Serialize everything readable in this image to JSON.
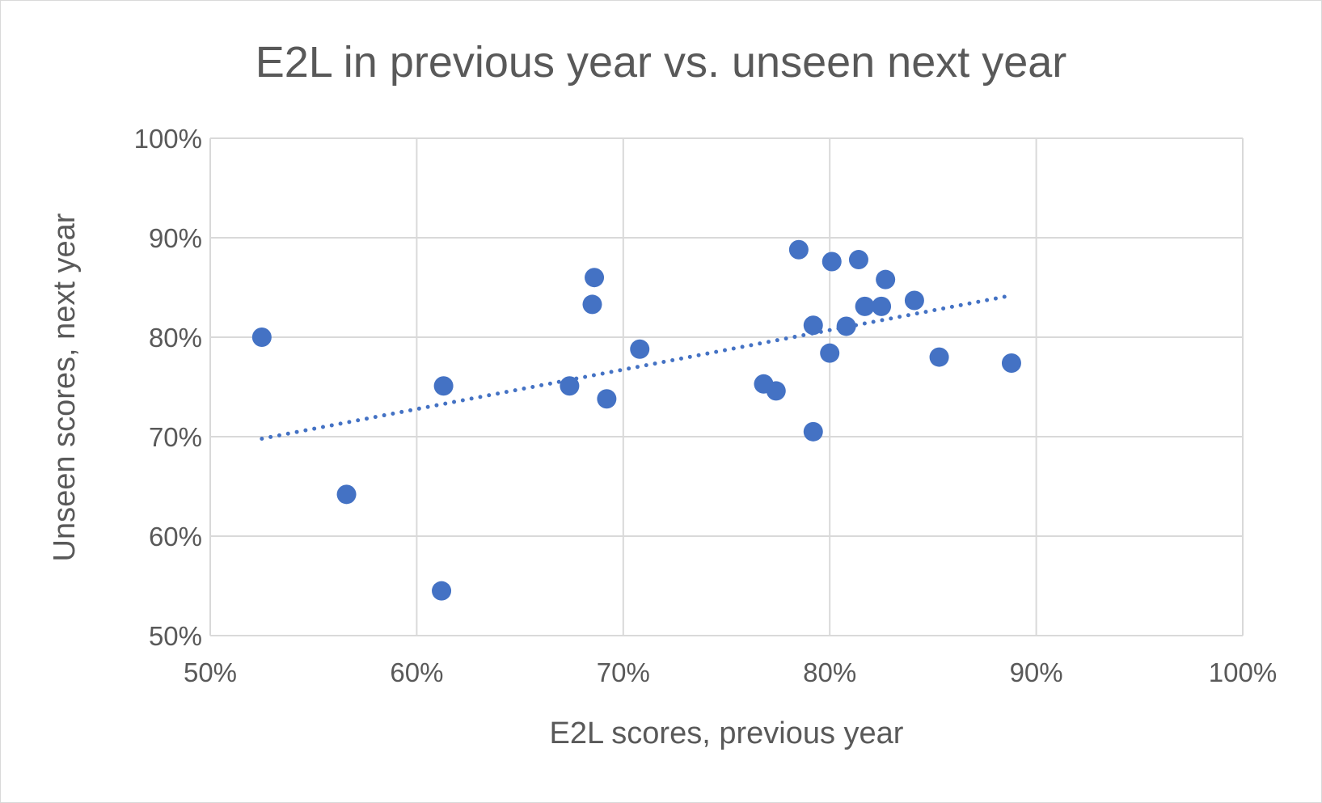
{
  "chart_data": {
    "type": "scatter",
    "title": "E2L in previous year vs. unseen next year",
    "xlabel": "E2L scores, previous year",
    "ylabel": "Unseen scores, next year",
    "xlim": [
      0.5,
      1.0
    ],
    "ylim": [
      0.5,
      1.0
    ],
    "x_ticks": [
      "50%",
      "60%",
      "70%",
      "80%",
      "90%",
      "100%"
    ],
    "y_ticks": [
      "50%",
      "60%",
      "70%",
      "80%",
      "90%",
      "100%"
    ],
    "grid": true,
    "legend": "none",
    "series": [
      {
        "color": "#4472c4",
        "points": [
          {
            "x": 0.525,
            "y": 0.8
          },
          {
            "x": 0.566,
            "y": 0.642
          },
          {
            "x": 0.612,
            "y": 0.545
          },
          {
            "x": 0.613,
            "y": 0.751
          },
          {
            "x": 0.674,
            "y": 0.751
          },
          {
            "x": 0.685,
            "y": 0.833
          },
          {
            "x": 0.686,
            "y": 0.86
          },
          {
            "x": 0.692,
            "y": 0.738
          },
          {
            "x": 0.708,
            "y": 0.788
          },
          {
            "x": 0.768,
            "y": 0.753
          },
          {
            "x": 0.774,
            "y": 0.746
          },
          {
            "x": 0.785,
            "y": 0.888
          },
          {
            "x": 0.792,
            "y": 0.812
          },
          {
            "x": 0.792,
            "y": 0.705
          },
          {
            "x": 0.8,
            "y": 0.784
          },
          {
            "x": 0.801,
            "y": 0.876
          },
          {
            "x": 0.808,
            "y": 0.811
          },
          {
            "x": 0.814,
            "y": 0.878
          },
          {
            "x": 0.817,
            "y": 0.831
          },
          {
            "x": 0.825,
            "y": 0.831
          },
          {
            "x": 0.827,
            "y": 0.858
          },
          {
            "x": 0.841,
            "y": 0.837
          },
          {
            "x": 0.853,
            "y": 0.78
          },
          {
            "x": 0.888,
            "y": 0.774
          }
        ]
      }
    ],
    "trendline": {
      "type": "linear",
      "style": "dotted",
      "color": "#4472c4",
      "points": [
        {
          "x": 0.525,
          "y": 0.698
        },
        {
          "x": 0.888,
          "y": 0.842
        }
      ]
    }
  }
}
